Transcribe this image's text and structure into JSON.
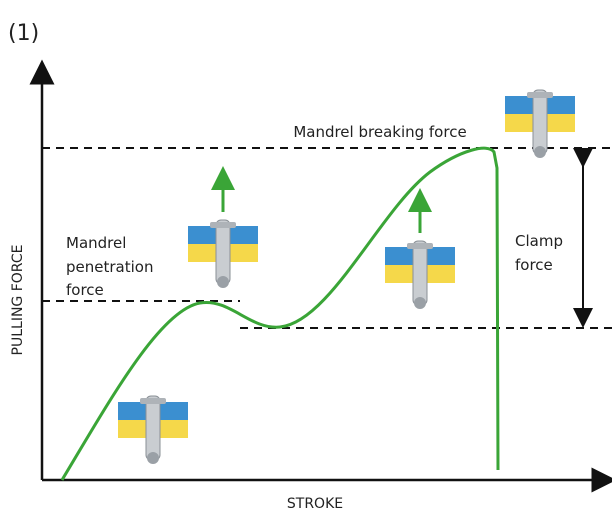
{
  "figure_label": "(1)",
  "axes": {
    "y_label": "PULLING FORCE",
    "x_label": "STROKE"
  },
  "annotations": {
    "breaking": "Mandrel breaking force",
    "penetration": {
      "lines": [
        "Mandrel",
        "penetration",
        "force"
      ]
    },
    "clamp": {
      "lines": [
        "Clamp",
        "force"
      ]
    }
  }
}
